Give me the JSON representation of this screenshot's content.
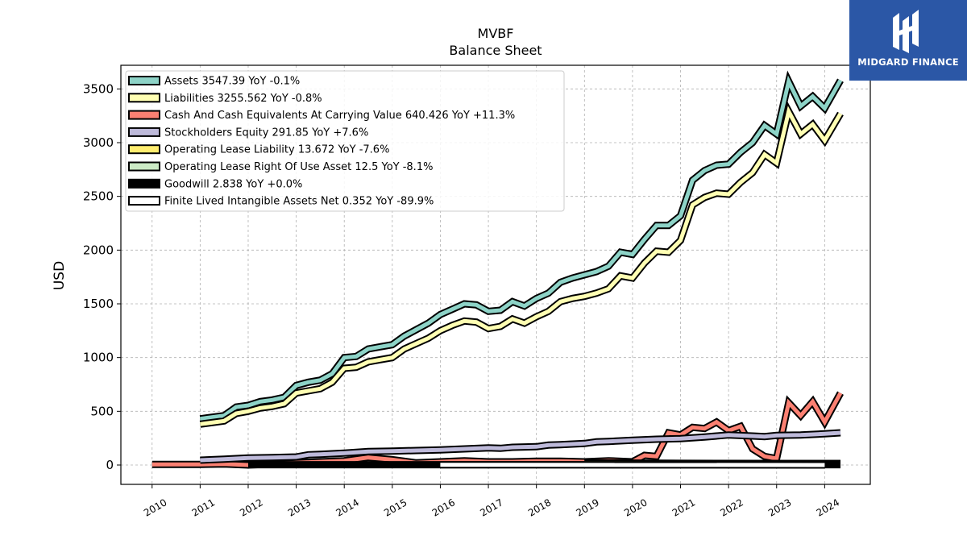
{
  "chart_data": {
    "type": "line",
    "title": "MVBF",
    "subtitle": "Balance  Sheet",
    "ylabel": "USD",
    "xlabel": "",
    "xlim": [
      2009.35,
      2024.95
    ],
    "ylim": [
      -180,
      3720
    ],
    "yticks": [
      0,
      500,
      1000,
      1500,
      2000,
      2500,
      3000,
      3500
    ],
    "xticks": [
      "2010",
      "2011",
      "2012",
      "2013",
      "2014",
      "2015",
      "2016",
      "2017",
      "2018",
      "2019",
      "2020",
      "2021",
      "2022",
      "2023",
      "2024"
    ],
    "grid": true,
    "legend_position": "top-left",
    "series": [
      {
        "name": "Assets  3547.39 YoY -0.1%",
        "color": "#8dd3c7",
        "data": [
          [
            2011,
            430
          ],
          [
            2011.5,
            460
          ],
          [
            2011.75,
            540
          ],
          [
            2012,
            555
          ],
          [
            2012.25,
            590
          ],
          [
            2012.5,
            605
          ],
          [
            2012.75,
            630
          ],
          [
            2013,
            740
          ],
          [
            2013.25,
            770
          ],
          [
            2013.5,
            790
          ],
          [
            2013.75,
            850
          ],
          [
            2014,
            1000
          ],
          [
            2014.25,
            1010
          ],
          [
            2014.5,
            1080
          ],
          [
            2014.75,
            1100
          ],
          [
            2015,
            1120
          ],
          [
            2015.25,
            1200
          ],
          [
            2015.5,
            1260
          ],
          [
            2015.75,
            1320
          ],
          [
            2016,
            1400
          ],
          [
            2016.25,
            1450
          ],
          [
            2016.5,
            1500
          ],
          [
            2016.75,
            1490
          ],
          [
            2017,
            1430
          ],
          [
            2017.25,
            1440
          ],
          [
            2017.5,
            1520
          ],
          [
            2017.75,
            1480
          ],
          [
            2018,
            1550
          ],
          [
            2018.25,
            1600
          ],
          [
            2018.5,
            1700
          ],
          [
            2018.75,
            1740
          ],
          [
            2019,
            1770
          ],
          [
            2019.25,
            1800
          ],
          [
            2019.5,
            1850
          ],
          [
            2019.75,
            1980
          ],
          [
            2020,
            1960
          ],
          [
            2020.25,
            2100
          ],
          [
            2020.5,
            2230
          ],
          [
            2020.75,
            2230
          ],
          [
            2021,
            2320
          ],
          [
            2021.25,
            2650
          ],
          [
            2021.5,
            2740
          ],
          [
            2021.75,
            2790
          ],
          [
            2022,
            2800
          ],
          [
            2022.25,
            2910
          ],
          [
            2022.5,
            3000
          ],
          [
            2022.75,
            3160
          ],
          [
            2023,
            3080
          ],
          [
            2023.25,
            3570
          ],
          [
            2023.5,
            3340
          ],
          [
            2023.75,
            3430
          ],
          [
            2024,
            3320
          ],
          [
            2024.33,
            3580
          ]
        ]
      },
      {
        "name": "Liabilities  3255.562 YoY -0.8%",
        "color": "#ffffb3",
        "data": [
          [
            2011,
            380
          ],
          [
            2011.5,
            410
          ],
          [
            2011.75,
            480
          ],
          [
            2012,
            500
          ],
          [
            2012.25,
            530
          ],
          [
            2012.5,
            545
          ],
          [
            2012.75,
            570
          ],
          [
            2013,
            670
          ],
          [
            2013.25,
            690
          ],
          [
            2013.5,
            710
          ],
          [
            2013.75,
            770
          ],
          [
            2014,
            900
          ],
          [
            2014.25,
            910
          ],
          [
            2014.5,
            960
          ],
          [
            2014.75,
            980
          ],
          [
            2015,
            1000
          ],
          [
            2015.25,
            1080
          ],
          [
            2015.5,
            1130
          ],
          [
            2015.75,
            1180
          ],
          [
            2016,
            1250
          ],
          [
            2016.25,
            1300
          ],
          [
            2016.5,
            1340
          ],
          [
            2016.75,
            1330
          ],
          [
            2017,
            1270
          ],
          [
            2017.25,
            1290
          ],
          [
            2017.5,
            1360
          ],
          [
            2017.75,
            1320
          ],
          [
            2018,
            1380
          ],
          [
            2018.25,
            1430
          ],
          [
            2018.5,
            1520
          ],
          [
            2018.75,
            1550
          ],
          [
            2019,
            1570
          ],
          [
            2019.25,
            1600
          ],
          [
            2019.5,
            1640
          ],
          [
            2019.75,
            1760
          ],
          [
            2020,
            1740
          ],
          [
            2020.25,
            1880
          ],
          [
            2020.5,
            1990
          ],
          [
            2020.75,
            1980
          ],
          [
            2021,
            2090
          ],
          [
            2021.25,
            2420
          ],
          [
            2021.5,
            2490
          ],
          [
            2021.75,
            2530
          ],
          [
            2022,
            2520
          ],
          [
            2022.25,
            2630
          ],
          [
            2022.5,
            2720
          ],
          [
            2022.75,
            2890
          ],
          [
            2023,
            2810
          ],
          [
            2023.25,
            3290
          ],
          [
            2023.5,
            3080
          ],
          [
            2023.75,
            3170
          ],
          [
            2024,
            3020
          ],
          [
            2024.33,
            3270
          ]
        ]
      },
      {
        "name": "Cash And Cash Equivalents At Carrying Value  640.426 YoY +11.3%",
        "color": "#fb8072",
        "data": [
          [
            2010,
            5
          ],
          [
            2011,
            5
          ],
          [
            2011.5,
            10
          ],
          [
            2012,
            0
          ],
          [
            2012.5,
            10
          ],
          [
            2013,
            20
          ],
          [
            2013.5,
            30
          ],
          [
            2014,
            40
          ],
          [
            2014.5,
            70
          ],
          [
            2015,
            50
          ],
          [
            2015.5,
            20
          ],
          [
            2016,
            30
          ],
          [
            2016.5,
            40
          ],
          [
            2017,
            30
          ],
          [
            2017.5,
            30
          ],
          [
            2018,
            35
          ],
          [
            2018.5,
            35
          ],
          [
            2019,
            30
          ],
          [
            2019.5,
            40
          ],
          [
            2020,
            30
          ],
          [
            2020.25,
            90
          ],
          [
            2020.5,
            80
          ],
          [
            2020.75,
            300
          ],
          [
            2021,
            280
          ],
          [
            2021.25,
            350
          ],
          [
            2021.5,
            340
          ],
          [
            2021.75,
            400
          ],
          [
            2022,
            320
          ],
          [
            2022.25,
            360
          ],
          [
            2022.5,
            150
          ],
          [
            2022.75,
            80
          ],
          [
            2023,
            60
          ],
          [
            2023.25,
            580
          ],
          [
            2023.5,
            460
          ],
          [
            2023.75,
            590
          ],
          [
            2024,
            400
          ],
          [
            2024.33,
            670
          ]
        ]
      },
      {
        "name": "Stockholders Equity  291.85 YoY +7.6%",
        "color": "#bebada",
        "data": [
          [
            2011,
            45
          ],
          [
            2011.5,
            55
          ],
          [
            2012,
            65
          ],
          [
            2012.5,
            70
          ],
          [
            2013,
            75
          ],
          [
            2013.25,
            95
          ],
          [
            2013.5,
            100
          ],
          [
            2014,
            110
          ],
          [
            2014.5,
            125
          ],
          [
            2015,
            130
          ],
          [
            2015.5,
            135
          ],
          [
            2016,
            140
          ],
          [
            2016.5,
            150
          ],
          [
            2017,
            160
          ],
          [
            2017.25,
            155
          ],
          [
            2017.5,
            165
          ],
          [
            2018,
            170
          ],
          [
            2018.25,
            185
          ],
          [
            2018.5,
            190
          ],
          [
            2019,
            200
          ],
          [
            2019.25,
            215
          ],
          [
            2019.5,
            220
          ],
          [
            2020,
            230
          ],
          [
            2020.5,
            240
          ],
          [
            2021,
            245
          ],
          [
            2021.5,
            260
          ],
          [
            2022,
            280
          ],
          [
            2022.5,
            270
          ],
          [
            2022.75,
            265
          ],
          [
            2023,
            275
          ],
          [
            2023.5,
            280
          ],
          [
            2024,
            290
          ],
          [
            2024.33,
            300
          ]
        ]
      },
      {
        "name": "Operating Lease Liability  13.672 YoY -7.6%",
        "color": "#fdb462",
        "data": [
          [
            2019,
            20
          ],
          [
            2020,
            18
          ],
          [
            2021,
            16
          ],
          [
            2022,
            15
          ],
          [
            2023,
            14
          ],
          [
            2024.33,
            14
          ]
        ]
      },
      {
        "name": "Operating Lease Right Of Use Asset  12.5 YoY -8.1%",
        "color": "#b3de69",
        "data": [
          [
            2019,
            18
          ],
          [
            2020,
            16
          ],
          [
            2021,
            15
          ],
          [
            2022,
            14
          ],
          [
            2023,
            13
          ],
          [
            2024.33,
            12.5
          ]
        ]
      },
      {
        "name": "Goodwill  2.838 YoY +0.0%",
        "color": "#000000",
        "data": [
          [
            2012,
            3
          ],
          [
            2024.33,
            3
          ]
        ]
      },
      {
        "name": "Finite Lived Intangible Assets Net  0.352 YoY -89.9%",
        "color": "#ffffff",
        "data": [
          [
            2016,
            2
          ],
          [
            2024,
            0.35
          ]
        ]
      }
    ],
    "legend_fill_colors": [
      "#8dd3c7",
      "#ffffb3",
      "#fb8072",
      "#bebada",
      "#ffed6f",
      "#ccebc5",
      "#000000",
      "#ffffff"
    ]
  },
  "branding": {
    "logo_text": "MIDGARD FINANCE",
    "logo_color": "#2b57a6"
  }
}
